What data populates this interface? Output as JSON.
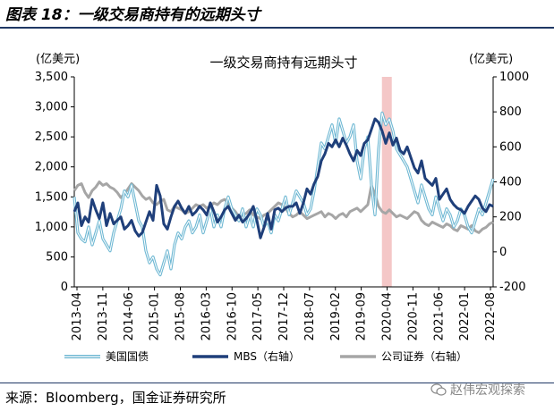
{
  "figure_title": "图表 18：一级交易商持有的远期头寸",
  "source": "来源：Bloomberg，国金证券研究所",
  "watermark": "赵伟宏观探索",
  "colors": {
    "treasury": "#6fb8d3",
    "mbs": "#1f3f7a",
    "corporate": "#a6a6a6",
    "highlight": "#f4c7c7",
    "rule": "#1f3864"
  },
  "chart_data": {
    "type": "line",
    "title": "一级交易商持有远期头寸",
    "ylabel_left": "(亿美元)",
    "ylabel_right": "(亿美元)",
    "ylim_left": [
      0,
      3500
    ],
    "ylim_right": [
      -200,
      1000
    ],
    "yticks_left": [
      "3,500",
      "3,000",
      "2,500",
      "2,000",
      "1,500",
      "1,000",
      "500",
      "0"
    ],
    "yticks_right": [
      "1000",
      "800",
      "600",
      "400",
      "200",
      "0",
      "-200"
    ],
    "xticks": [
      "2013-04",
      "2013-11",
      "2014-06",
      "2015-01",
      "2015-08",
      "2016-03",
      "2016-10",
      "2017-05",
      "2017-12",
      "2018-07",
      "2019-02",
      "2019-09",
      "2020-04",
      "2020-11",
      "2021-06",
      "2022-01",
      "2022-08"
    ],
    "highlight_band": [
      "2020-03",
      "2020-05"
    ],
    "legend": [
      {
        "key": "treasury",
        "label": "美国国债",
        "style": "double"
      },
      {
        "key": "mbs",
        "label": "MBS（右轴）",
        "style": "thick"
      },
      {
        "key": "corporate",
        "label": "公司证券（右轴）",
        "style": "thick-gray"
      }
    ],
    "series": [
      {
        "name": "美国国债",
        "axis": "left",
        "x": [
          0,
          1,
          2,
          3,
          4,
          5,
          6,
          7,
          8,
          9,
          10,
          11,
          12,
          13,
          14,
          15,
          16,
          17,
          18,
          19,
          20,
          21,
          22,
          23,
          24,
          25,
          26,
          27,
          28,
          29,
          30,
          31,
          32,
          33,
          34,
          35,
          36,
          37,
          38,
          39,
          40,
          41,
          42,
          43,
          44,
          45,
          46,
          47,
          48,
          49,
          50,
          51,
          52,
          53,
          54,
          55,
          56,
          57,
          58,
          59,
          60,
          61,
          62,
          63,
          64,
          65,
          66,
          67,
          68,
          69,
          70,
          71,
          72,
          73,
          74,
          75,
          76,
          77,
          78,
          79,
          80,
          81,
          82,
          83,
          84,
          85,
          86,
          87,
          88,
          89,
          90,
          91,
          92,
          93,
          94,
          95,
          96,
          97,
          98,
          99,
          100,
          101,
          102,
          103,
          104,
          105,
          106,
          107,
          108,
          109,
          110,
          111,
          112,
          113,
          114,
          115,
          116,
          117
        ],
        "values": [
          1500,
          900,
          800,
          750,
          1000,
          700,
          900,
          1100,
          800,
          700,
          600,
          900,
          1100,
          1300,
          1600,
          1500,
          1700,
          1400,
          1100,
          1000,
          600,
          400,
          500,
          300,
          200,
          400,
          600,
          300,
          700,
          900,
          800,
          1000,
          1100,
          900,
          1000,
          1200,
          900,
          1100,
          1300,
          1000,
          1200,
          1000,
          1300,
          1500,
          1300,
          1200,
          1100,
          1300,
          1000,
          1200,
          1000,
          1300,
          1200,
          1000,
          1100,
          900,
          1200,
          1100,
          1300,
          1500,
          1200,
          1400,
          1600,
          1500,
          1400,
          1200,
          1300,
          1600,
          2000,
          2400,
          2300,
          2500,
          2700,
          2400,
          2800,
          2600,
          2400,
          2500,
          2700,
          2100,
          1800,
          2300,
          2500,
          1700,
          1200,
          2300,
          2900,
          2700,
          2800,
          2600,
          2300,
          2200,
          2100,
          2000,
          1800,
          1600,
          1400,
          1700,
          1500,
          1300,
          1200,
          1500,
          1300,
          1100,
          1300,
          1200,
          1000,
          1100,
          1300,
          1200,
          1000,
          900,
          1100,
          1300,
          1200,
          1400,
          1600,
          1800
        ]
      },
      {
        "name": "MBS（右轴）",
        "axis": "right",
        "x": [
          0,
          1,
          2,
          3,
          4,
          5,
          6,
          7,
          8,
          9,
          10,
          11,
          12,
          13,
          14,
          15,
          16,
          17,
          18,
          19,
          20,
          21,
          22,
          23,
          24,
          25,
          26,
          27,
          28,
          29,
          30,
          31,
          32,
          33,
          34,
          35,
          36,
          37,
          38,
          39,
          40,
          41,
          42,
          43,
          44,
          45,
          46,
          47,
          48,
          49,
          50,
          51,
          52,
          53,
          54,
          55,
          56,
          57,
          58,
          59,
          60,
          61,
          62,
          63,
          64,
          65,
          66,
          67,
          68,
          69,
          70,
          71,
          72,
          73,
          74,
          75,
          76,
          77,
          78,
          79,
          80,
          81,
          82,
          83,
          84,
          85,
          86,
          87,
          88,
          89,
          90,
          91,
          92,
          93,
          94,
          95,
          96,
          97,
          98,
          99,
          100,
          101,
          102,
          103,
          104,
          105,
          106,
          107,
          108,
          109,
          110,
          111,
          112,
          113,
          114,
          115,
          116,
          117
        ],
        "values": [
          230,
          280,
          150,
          200,
          170,
          300,
          240,
          190,
          280,
          150,
          220,
          160,
          180,
          200,
          130,
          150,
          180,
          120,
          90,
          110,
          170,
          230,
          180,
          380,
          320,
          160,
          130,
          200,
          260,
          290,
          250,
          220,
          260,
          210,
          230,
          260,
          240,
          210,
          280,
          230,
          170,
          200,
          240,
          260,
          220,
          180,
          210,
          170,
          190,
          220,
          260,
          180,
          80,
          140,
          220,
          130,
          240,
          250,
          230,
          250,
          260,
          260,
          280,
          220,
          280,
          360,
          330,
          390,
          430,
          520,
          560,
          620,
          600,
          640,
          600,
          650,
          610,
          560,
          520,
          580,
          550,
          620,
          640,
          700,
          760,
          740,
          690,
          620,
          680,
          610,
          650,
          580,
          560,
          600,
          540,
          480,
          450,
          520,
          420,
          400,
          380,
          420,
          300,
          330,
          360,
          300,
          270,
          250,
          240,
          220,
          260,
          290,
          320,
          300,
          250,
          230,
          270,
          260
        ]
      },
      {
        "name": "公司证券（右轴）",
        "axis": "right",
        "x": [
          0,
          1,
          2,
          3,
          4,
          5,
          6,
          7,
          8,
          9,
          10,
          11,
          12,
          13,
          14,
          15,
          16,
          17,
          18,
          19,
          20,
          21,
          22,
          23,
          24,
          25,
          26,
          27,
          28,
          29,
          30,
          31,
          32,
          33,
          34,
          35,
          36,
          37,
          38,
          39,
          40,
          41,
          42,
          43,
          44,
          45,
          46,
          47,
          48,
          49,
          50,
          51,
          52,
          53,
          54,
          55,
          56,
          57,
          58,
          59,
          60,
          61,
          62,
          63,
          64,
          65,
          66,
          67,
          68,
          69,
          70,
          71,
          72,
          73,
          74,
          75,
          76,
          77,
          78,
          79,
          80,
          81,
          82,
          83,
          84,
          85,
          86,
          87,
          88,
          89,
          90,
          91,
          92,
          93,
          94,
          95,
          96,
          97,
          98,
          99,
          100,
          101,
          102,
          103,
          104,
          105,
          106,
          107,
          108,
          109,
          110,
          111,
          112,
          113,
          114,
          115,
          116,
          117
        ],
        "values": [
          350,
          380,
          390,
          340,
          310,
          350,
          370,
          400,
          380,
          390,
          370,
          360,
          340,
          310,
          330,
          360,
          390,
          370,
          350,
          320,
          300,
          310,
          280,
          270,
          290,
          300,
          240,
          230,
          260,
          250,
          240,
          220,
          230,
          250,
          270,
          260,
          270,
          250,
          260,
          280,
          270,
          290,
          300,
          280,
          250,
          230,
          200,
          210,
          220,
          240,
          210,
          200,
          190,
          210,
          220,
          240,
          260,
          280,
          270,
          250,
          220,
          200,
          210,
          230,
          210,
          190,
          200,
          210,
          220,
          230,
          200,
          220,
          210,
          190,
          210,
          220,
          200,
          230,
          240,
          250,
          230,
          250,
          270,
          380,
          330,
          260,
          230,
          220,
          240,
          220,
          200,
          210,
          200,
          190,
          210,
          230,
          220,
          180,
          160,
          150,
          170,
          160,
          150,
          140,
          160,
          150,
          130,
          120,
          150,
          140,
          130,
          150,
          120,
          110,
          130,
          140,
          160,
          170
        ]
      }
    ]
  }
}
